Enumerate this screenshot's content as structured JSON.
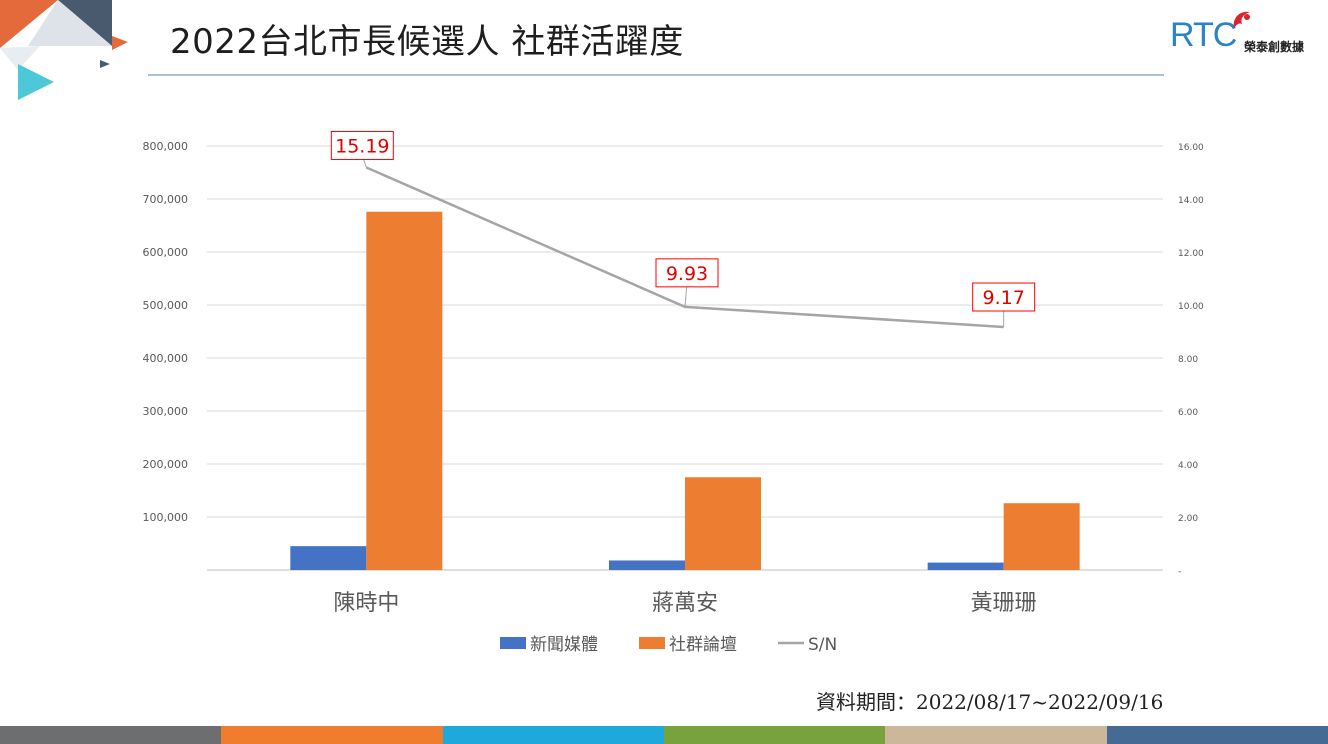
{
  "title": "2022台北市長候選人 社群活躍度",
  "brand": {
    "short": "RTC",
    "name": "榮泰創數據"
  },
  "source_note": "資料期間：2022/08/17~2022/09/16",
  "colors": {
    "news": "#4472c4",
    "social": "#ed7d31",
    "sn": "#a5a5a5",
    "label_border": "#ff0000",
    "label_text": "#e00000",
    "bottom_bar": [
      "#6d6e70",
      "#ef7d2d",
      "#1ea8dc",
      "#77a23e",
      "#cdb79a",
      "#456a93"
    ]
  },
  "chart_data": {
    "type": "bar",
    "categories": [
      "陳時中",
      "蔣萬安",
      "黃珊珊"
    ],
    "series": [
      {
        "name": "新聞媒體",
        "type": "bar",
        "axis": "left",
        "values": [
          45000,
          18000,
          14000
        ]
      },
      {
        "name": "社群論壇",
        "type": "bar",
        "axis": "left",
        "values": [
          676000,
          175000,
          126000
        ]
      },
      {
        "name": "S/N",
        "type": "line",
        "axis": "right",
        "values": [
          15.19,
          9.93,
          9.17
        ]
      }
    ],
    "data_labels": [
      "15.19",
      "9.93",
      "9.17"
    ],
    "y_left": {
      "range": [
        0,
        800000
      ],
      "ticks": [
        0,
        100000,
        200000,
        300000,
        400000,
        500000,
        600000,
        700000,
        800000
      ],
      "tick_labels": [
        "",
        "100,000",
        "200,000",
        "300,000",
        "400,000",
        "500,000",
        "600,000",
        "700,000",
        "800,000"
      ]
    },
    "y_right": {
      "range": [
        0,
        16
      ],
      "ticks": [
        0,
        2,
        4,
        6,
        8,
        10,
        12,
        14,
        16
      ],
      "tick_labels": [
        "-",
        "2.00",
        "4.00",
        "6.00",
        "8.00",
        "10.00",
        "12.00",
        "14.00",
        "16.00"
      ]
    },
    "grid": true,
    "legend_position": "bottom"
  }
}
